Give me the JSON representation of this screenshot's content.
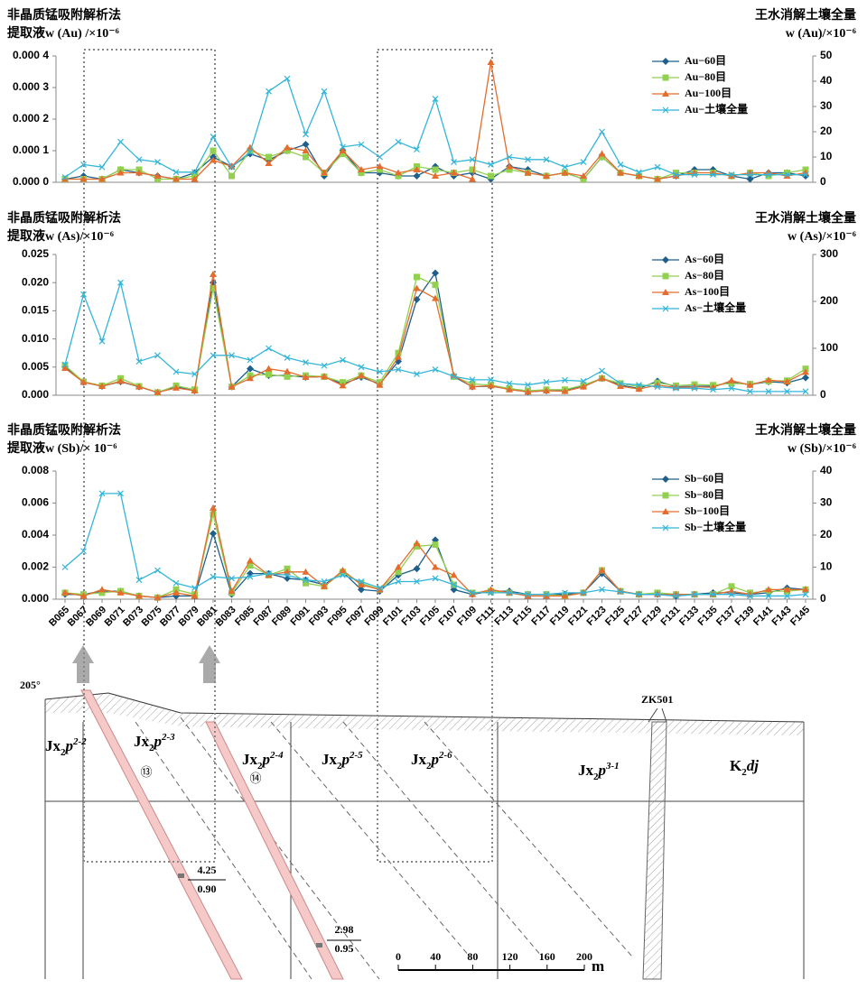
{
  "chart_data": [
    {
      "type": "line",
      "y_title": [
        "非晶质锰吸附解析法",
        "提取液w (Au) /×10⁻⁶"
      ],
      "y2_title": [
        "王水消解土壤全量",
        "w (Au)/×10⁻⁶"
      ],
      "ylim": [
        0,
        0.0004
      ],
      "yticks": [
        {
          "value": 0,
          "label": "0.000 0"
        },
        {
          "value": 0.0001,
          "label": "0.000 1"
        },
        {
          "value": 0.0002,
          "label": "0.000 2"
        },
        {
          "value": 0.0003,
          "label": "0.000 3"
        },
        {
          "value": 0.0004,
          "label": "0.000 4"
        }
      ],
      "y2lim": [
        0,
        50
      ],
      "y2ticks": [
        0,
        10,
        20,
        30,
        40,
        50
      ],
      "series": [
        {
          "name": "Au−60目",
          "color": "#1f5f8b",
          "values": [
            1e-05,
            2e-05,
            1e-05,
            4e-05,
            3e-05,
            2e-05,
            1e-05,
            3e-05,
            8e-05,
            5e-05,
            9e-05,
            7e-05,
            0.0001,
            0.00012,
            2e-05,
            0.0001,
            3e-05,
            3e-05,
            2e-05,
            2e-05,
            5e-05,
            2e-05,
            3e-05,
            1e-05,
            5e-05,
            4e-05,
            2e-05,
            3e-05,
            1e-05,
            8e-05,
            3e-05,
            2e-05,
            1e-05,
            2e-05,
            4e-05,
            4e-05,
            2e-05,
            1e-05,
            3e-05,
            3e-05,
            2e-05
          ]
        },
        {
          "name": "Au−80目",
          "color": "#92d050",
          "values": [
            1e-05,
            1e-05,
            1e-05,
            4e-05,
            4e-05,
            1e-05,
            1e-05,
            2e-05,
            0.0001,
            2e-05,
            0.0001,
            8e-05,
            0.0001,
            8e-05,
            3e-05,
            9e-05,
            3e-05,
            4e-05,
            2e-05,
            5e-05,
            4e-05,
            3e-05,
            4e-05,
            2e-05,
            4e-05,
            3e-05,
            2e-05,
            3e-05,
            1e-05,
            8e-05,
            3e-05,
            2e-05,
            1e-05,
            3e-05,
            3e-05,
            3e-05,
            2e-05,
            3e-05,
            2e-05,
            3e-05,
            4e-05
          ]
        },
        {
          "name": "Au−100目",
          "color": "#e46c2e",
          "values": [
            1e-05,
            1e-05,
            1e-05,
            3e-05,
            3e-05,
            2e-05,
            1e-05,
            1e-05,
            7e-05,
            5e-05,
            0.00011,
            6e-05,
            0.00011,
            0.0001,
            3e-05,
            0.0001,
            4e-05,
            5e-05,
            3e-05,
            4e-05,
            2e-05,
            3e-05,
            1e-05,
            0.00038,
            5e-05,
            3e-05,
            2e-05,
            3e-05,
            2e-05,
            9e-05,
            3e-05,
            2e-05,
            1e-05,
            2e-05,
            3e-05,
            3e-05,
            2e-05,
            3e-05,
            3e-05,
            2e-05,
            3e-05
          ]
        },
        {
          "name": "Au−土壤全量",
          "color": "#33b5d8",
          "axis": "y2",
          "values": [
            2,
            7,
            6,
            16,
            9,
            8,
            4,
            4,
            18,
            6,
            12,
            36,
            41,
            19,
            36,
            14,
            15,
            10,
            16,
            13,
            33,
            8,
            9,
            7,
            10,
            9,
            9,
            6,
            8,
            20,
            7,
            4,
            6,
            3,
            3,
            3,
            3,
            3,
            3,
            3,
            3
          ]
        }
      ]
    },
    {
      "type": "line",
      "y_title": [
        "非晶质锰吸附解析法",
        "提取液w (As)/×10⁻⁶"
      ],
      "y2_title": [
        "王水消解土壤全量",
        "w (As)/×10⁻⁶"
      ],
      "ylim": [
        0,
        0.025
      ],
      "yticks": [
        {
          "value": 0,
          "label": "0.000"
        },
        0.005,
        {
          "value": 0.01,
          "label": "0.010"
        },
        0.015,
        {
          "value": 0.02,
          "label": "0.020"
        },
        0.025
      ],
      "y2lim": [
        0,
        300
      ],
      "y2ticks": [
        0,
        100,
        200,
        300
      ],
      "series": [
        {
          "name": "As−60目",
          "color": "#1f5f8b",
          "values": [
            0.005,
            0.0023,
            0.0016,
            0.0024,
            0.0015,
            0.0005,
            0.0015,
            0.0008,
            0.02,
            0.0015,
            0.0047,
            0.0035,
            0.0035,
            0.0032,
            0.0033,
            0.002,
            0.0032,
            0.002,
            0.006,
            0.017,
            0.0217,
            0.0033,
            0.0015,
            0.0016,
            0.0011,
            0.0006,
            0.0008,
            0.0008,
            0.0016,
            0.003,
            0.0018,
            0.0012,
            0.0025,
            0.0015,
            0.0016,
            0.0016,
            0.0023,
            0.0019,
            0.0024,
            0.0022,
            0.0031
          ]
        },
        {
          "name": "As−80目",
          "color": "#92d050",
          "values": [
            0.0053,
            0.0024,
            0.0017,
            0.003,
            0.0016,
            0.0005,
            0.0017,
            0.001,
            0.019,
            0.0015,
            0.0035,
            0.0037,
            0.0033,
            0.0035,
            0.0033,
            0.0023,
            0.0035,
            0.0023,
            0.0075,
            0.021,
            0.0196,
            0.0033,
            0.002,
            0.0018,
            0.0012,
            0.0008,
            0.001,
            0.001,
            0.0018,
            0.003,
            0.0021,
            0.0015,
            0.0022,
            0.0017,
            0.0019,
            0.0018,
            0.0021,
            0.002,
            0.0025,
            0.0026,
            0.0047
          ]
        },
        {
          "name": "As−100目",
          "color": "#e46c2e",
          "values": [
            0.0048,
            0.0023,
            0.0016,
            0.0025,
            0.0015,
            0.0005,
            0.0013,
            0.0008,
            0.0215,
            0.0015,
            0.003,
            0.0047,
            0.0042,
            0.0032,
            0.0033,
            0.0017,
            0.0035,
            0.0018,
            0.0068,
            0.019,
            0.0172,
            0.0035,
            0.0015,
            0.0017,
            0.001,
            0.0006,
            0.0008,
            0.0007,
            0.0015,
            0.003,
            0.0016,
            0.0011,
            0.0018,
            0.0014,
            0.0015,
            0.0014,
            0.0026,
            0.0018,
            0.0027,
            0.0024,
            0.0041
          ]
        },
        {
          "name": "As−土壤全量",
          "color": "#33b5d8",
          "axis": "y2",
          "values": [
            65,
            215,
            115,
            240,
            72,
            85,
            50,
            45,
            85,
            85,
            75,
            100,
            80,
            70,
            63,
            75,
            60,
            50,
            55,
            45,
            55,
            40,
            33,
            33,
            25,
            22,
            28,
            32,
            30,
            52,
            25,
            22,
            18,
            15,
            15,
            12,
            15,
            8,
            8,
            8,
            8
          ]
        }
      ]
    },
    {
      "type": "line",
      "y_title": [
        "非晶质锰吸附解析法",
        "提取液w (Sb)/× 10⁻⁶"
      ],
      "y2_title": [
        "王水消解土壤全量",
        "w (Sb)/×10⁻⁶"
      ],
      "categories": [
        "B065",
        "B067",
        "B069",
        "B071",
        "B073",
        "B075",
        "B077",
        "B079",
        "B081",
        "B083",
        "F085",
        "F087",
        "F089",
        "F091",
        "F093",
        "F095",
        "F097",
        "F099",
        "F101",
        "F103",
        "F105",
        "F107",
        "F109",
        "F111",
        "F113",
        "F115",
        "F117",
        "F119",
        "F121",
        "F123",
        "F125",
        "F127",
        "F129",
        "F131",
        "F133",
        "F135",
        "F137",
        "F139",
        "F141",
        "F143",
        "F145"
      ],
      "ylim": [
        0,
        0.008
      ],
      "yticks": [
        {
          "value": 0,
          "label": "0.000"
        },
        0.002,
        0.004,
        0.006,
        0.008
      ],
      "y2lim": [
        0,
        40
      ],
      "y2ticks": [
        0,
        10,
        20,
        30,
        40
      ],
      "series": [
        {
          "name": "Sb−60目",
          "color": "#1f5f8b",
          "values": [
            0.0003,
            0.0003,
            0.0005,
            0.0005,
            0.0002,
            0.0001,
            0.0002,
            0.0002,
            0.0041,
            0.0003,
            0.0016,
            0.0016,
            0.0013,
            0.0012,
            0.0009,
            0.0017,
            0.0006,
            0.0005,
            0.0015,
            0.0019,
            0.0037,
            0.0006,
            0.0003,
            0.0005,
            0.0005,
            0.0003,
            0.0003,
            0.0003,
            0.0004,
            0.0016,
            0.0005,
            0.0003,
            0.0003,
            0.0002,
            0.0003,
            0.0004,
            0.0004,
            0.0003,
            0.0004,
            0.0007,
            0.0006
          ]
        },
        {
          "name": "Sb−80目",
          "color": "#92d050",
          "values": [
            0.0004,
            0.0003,
            0.0004,
            0.0005,
            0.0002,
            0.0001,
            0.0006,
            0.0003,
            0.0053,
            0.0004,
            0.0021,
            0.0015,
            0.0019,
            0.001,
            0.0008,
            0.0017,
            0.001,
            0.0006,
            0.0017,
            0.0033,
            0.0034,
            0.0009,
            0.0004,
            0.0005,
            0.0004,
            0.0003,
            0.0003,
            0.0002,
            0.0004,
            0.0018,
            0.0005,
            0.0003,
            0.0004,
            0.0003,
            0.0003,
            0.0003,
            0.0008,
            0.0004,
            0.0005,
            0.0005,
            0.0006
          ]
        },
        {
          "name": "Sb−100目",
          "color": "#e46c2e",
          "values": [
            0.0004,
            0.0002,
            0.0006,
            0.0004,
            0.0002,
            0.0001,
            0.0004,
            0.0002,
            0.0057,
            0.0005,
            0.0024,
            0.0015,
            0.0017,
            0.0017,
            0.0008,
            0.0018,
            0.0009,
            0.0006,
            0.002,
            0.0035,
            0.002,
            0.0015,
            0.0003,
            0.0006,
            0.0004,
            0.0002,
            0.0002,
            0.0002,
            0.0004,
            0.0018,
            0.0005,
            0.0003,
            0.0003,
            0.0003,
            0.0003,
            0.0003,
            0.0005,
            0.0003,
            0.0006,
            0.0006,
            0.0006
          ]
        },
        {
          "name": "Sb−土壤全量",
          "color": "#33b5d8",
          "axis": "y2",
          "values": [
            10,
            15,
            33,
            33,
            6,
            9,
            5,
            3.5,
            7,
            6.5,
            7,
            8,
            7.5,
            6,
            5.5,
            7.5,
            5.5,
            3.5,
            5.5,
            5.5,
            6.5,
            4.5,
            2,
            2,
            2,
            1.5,
            1.5,
            2,
            2,
            3,
            2.3,
            1.5,
            1.5,
            1,
            1.5,
            1.5,
            1.5,
            1,
            1,
            1,
            1.5
          ]
        }
      ]
    }
  ],
  "section": {
    "azimuth": "205°",
    "drill": "ZK501",
    "units": [
      {
        "base": "Jx",
        "sub": "2",
        "p": "p",
        "sup": "2-2"
      },
      {
        "base": "Jx",
        "sub": "2",
        "p": "p",
        "sup": "2-3"
      },
      {
        "base": "Jx",
        "sub": "2",
        "p": "p",
        "sup": "2-4"
      },
      {
        "base": "Jx",
        "sub": "2",
        "p": "p",
        "sup": "2-5"
      },
      {
        "base": "Jx",
        "sub": "2",
        "p": "p",
        "sup": "2-6"
      },
      {
        "base": "Jx",
        "sub": "2",
        "p": "p",
        "sup": "3-1"
      },
      {
        "base": "K",
        "sub": "2",
        "p": "dj"
      }
    ],
    "bodies": [
      "⑬",
      "⑭"
    ],
    "grades": [
      {
        "top": "4.25",
        "bottom": "0.90"
      },
      {
        "top": "2.98",
        "bottom": "0.95"
      }
    ],
    "scale": {
      "ticks": [
        0,
        40,
        80,
        120,
        160,
        200
      ],
      "unit": "m"
    }
  }
}
